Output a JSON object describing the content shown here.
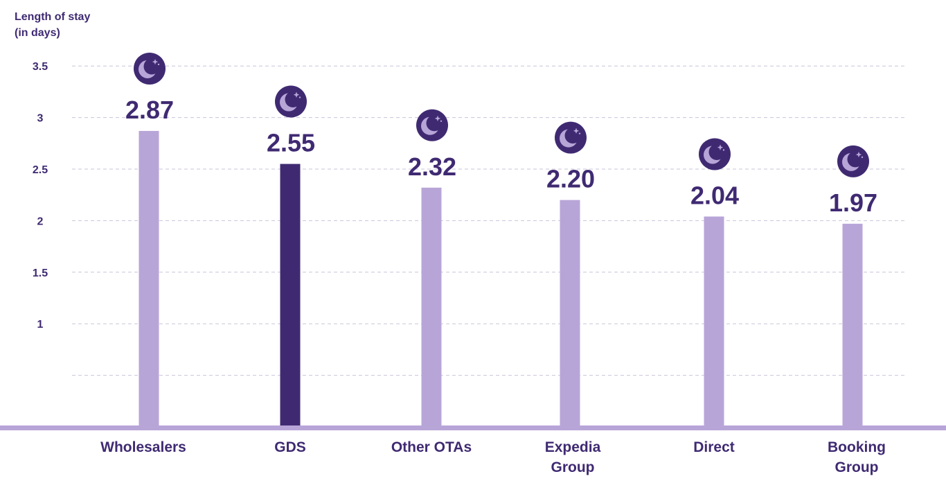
{
  "chart_data": {
    "type": "bar",
    "ylabel_lines": [
      "Length of stay",
      "(in days)"
    ],
    "xlabel": "",
    "ylim": [
      0,
      3.5
    ],
    "yticks": [
      {
        "value": 3.5,
        "label": "3.5"
      },
      {
        "value": 3,
        "label": "3"
      },
      {
        "value": 2.5,
        "label": "2.5"
      },
      {
        "value": 2,
        "label": "2"
      },
      {
        "value": 1.5,
        "label": "1.5"
      },
      {
        "value": 1,
        "label": "1"
      },
      {
        "value": 0.5,
        "label": ""
      }
    ],
    "grid": true,
    "categories": [
      {
        "lines": [
          "Wholesalers"
        ]
      },
      {
        "lines": [
          "GDS"
        ]
      },
      {
        "lines": [
          "Other OTAs"
        ]
      },
      {
        "lines": [
          "Expedia",
          "Group"
        ]
      },
      {
        "lines": [
          "Direct"
        ]
      },
      {
        "lines": [
          "Booking",
          "Group"
        ]
      }
    ],
    "values": [
      2.87,
      2.55,
      2.32,
      2.2,
      2.04,
      1.97
    ],
    "value_labels": [
      "2.87",
      "2.55",
      "2.32",
      "2.20",
      "2.04",
      "1.97"
    ],
    "highlight_index": 1,
    "marker_icon": "moon-stars-icon",
    "colors": {
      "bar": "#b8a5d8",
      "bar_highlight": "#3f2a72",
      "text": "#3f2a72",
      "grid": "#c9c3d9",
      "axis": "#b8a5d8",
      "icon_bg": "#3f2a72",
      "icon_fg": "#b8a5d8"
    }
  }
}
